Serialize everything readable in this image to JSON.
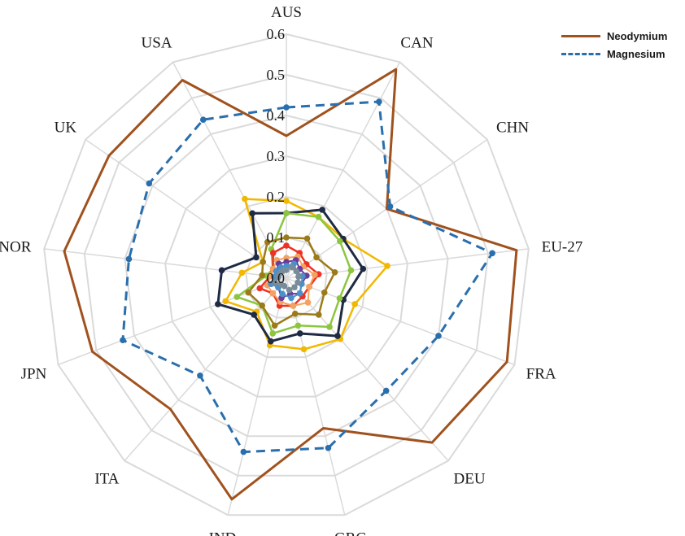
{
  "chart_data": {
    "type": "radar",
    "axes": [
      "AUS",
      "CAN",
      "CHN",
      "EU-27",
      "FRA",
      "DEU",
      "GRC",
      "IND",
      "ITA",
      "JPN",
      "NOR",
      "UK",
      "USA"
    ],
    "ticks": [
      "0.0",
      "0.1",
      "0.2",
      "0.3",
      "0.4",
      "0.5",
      "0.6"
    ],
    "rlim": [
      0,
      0.6
    ],
    "legend_position": "top-right",
    "series": [
      {
        "name": "Neodymium",
        "color": "#a0521e",
        "dash": "solid",
        "markers": false,
        "width": 3,
        "values": [
          0.35,
          0.58,
          0.3,
          0.57,
          0.58,
          0.54,
          0.38,
          0.56,
          0.43,
          0.51,
          0.55,
          0.53,
          0.55
        ]
      },
      {
        "name": "Magnesium",
        "color": "#2a6fad",
        "dash": "dashed",
        "markers": true,
        "width": 3,
        "values": [
          0.42,
          0.49,
          0.31,
          0.51,
          0.4,
          0.37,
          0.43,
          0.44,
          0.32,
          0.43,
          0.39,
          0.41,
          0.44
        ]
      },
      {
        "name": "",
        "color": "#f2b800",
        "dash": "solid",
        "markers": true,
        "width": 2.5,
        "values": [
          0.19,
          0.17,
          0.17,
          0.25,
          0.18,
          0.2,
          0.18,
          0.17,
          0.11,
          0.16,
          0.11,
          0.07,
          0.22
        ]
      },
      {
        "name": "",
        "color": "#1f2a44",
        "dash": "solid",
        "markers": true,
        "width": 3,
        "values": [
          0.16,
          0.19,
          0.17,
          0.19,
          0.15,
          0.19,
          0.14,
          0.16,
          0.12,
          0.18,
          0.16,
          0.09,
          0.18
        ]
      },
      {
        "name": "",
        "color": "#8cc63f",
        "dash": "solid",
        "markers": true,
        "width": 2.5,
        "values": [
          0.16,
          0.17,
          0.16,
          0.16,
          0.14,
          0.16,
          0.12,
          0.14,
          0.09,
          0.13,
          0.05,
          0.04,
          0.08
        ]
      },
      {
        "name": "",
        "color": "#9c7a1a",
        "dash": "solid",
        "markers": true,
        "width": 2.5,
        "values": [
          0.1,
          0.11,
          0.09,
          0.12,
          0.1,
          0.12,
          0.09,
          0.12,
          0.09,
          0.1,
          0.06,
          0.07,
          0.1
        ]
      },
      {
        "name": "",
        "color": "#ee3124",
        "dash": "solid",
        "markers": true,
        "width": 2.5,
        "values": [
          0.08,
          0.07,
          0.06,
          0.08,
          0.06,
          0.06,
          0.07,
          0.07,
          0.05,
          0.07,
          0.04,
          0.04,
          0.07
        ]
      },
      {
        "name": "",
        "color": "#f4a261",
        "dash": "solid",
        "markers": true,
        "width": 2,
        "values": [
          0.05,
          0.06,
          0.05,
          0.07,
          0.06,
          0.08,
          0.07,
          0.06,
          0.05,
          0.05,
          0.04,
          0.04,
          0.05
        ]
      },
      {
        "name": "",
        "color": "#6a3d9a",
        "dash": "solid",
        "markers": true,
        "width": 2,
        "values": [
          0.04,
          0.05,
          0.04,
          0.05,
          0.04,
          0.05,
          0.04,
          0.05,
          0.03,
          0.04,
          0.03,
          0.03,
          0.04
        ]
      },
      {
        "name": "",
        "color": "#4a90c9",
        "dash": "solid",
        "markers": true,
        "width": 2,
        "values": [
          0.03,
          0.04,
          0.03,
          0.04,
          0.04,
          0.05,
          0.05,
          0.04,
          0.03,
          0.04,
          0.03,
          0.03,
          0.03
        ]
      },
      {
        "name": "",
        "color": "#7a8b99",
        "dash": "solid",
        "markers": true,
        "width": 2,
        "values": [
          0.02,
          0.03,
          0.03,
          0.03,
          0.03,
          0.03,
          0.03,
          0.02,
          0.02,
          0.03,
          0.02,
          0.02,
          0.02
        ]
      }
    ]
  },
  "legend": [
    {
      "label": "Neodymium",
      "color": "#a0521e",
      "dash": "solid"
    },
    {
      "label": "Magnesium",
      "color": "#2a6fad",
      "dash": "dashed"
    }
  ]
}
